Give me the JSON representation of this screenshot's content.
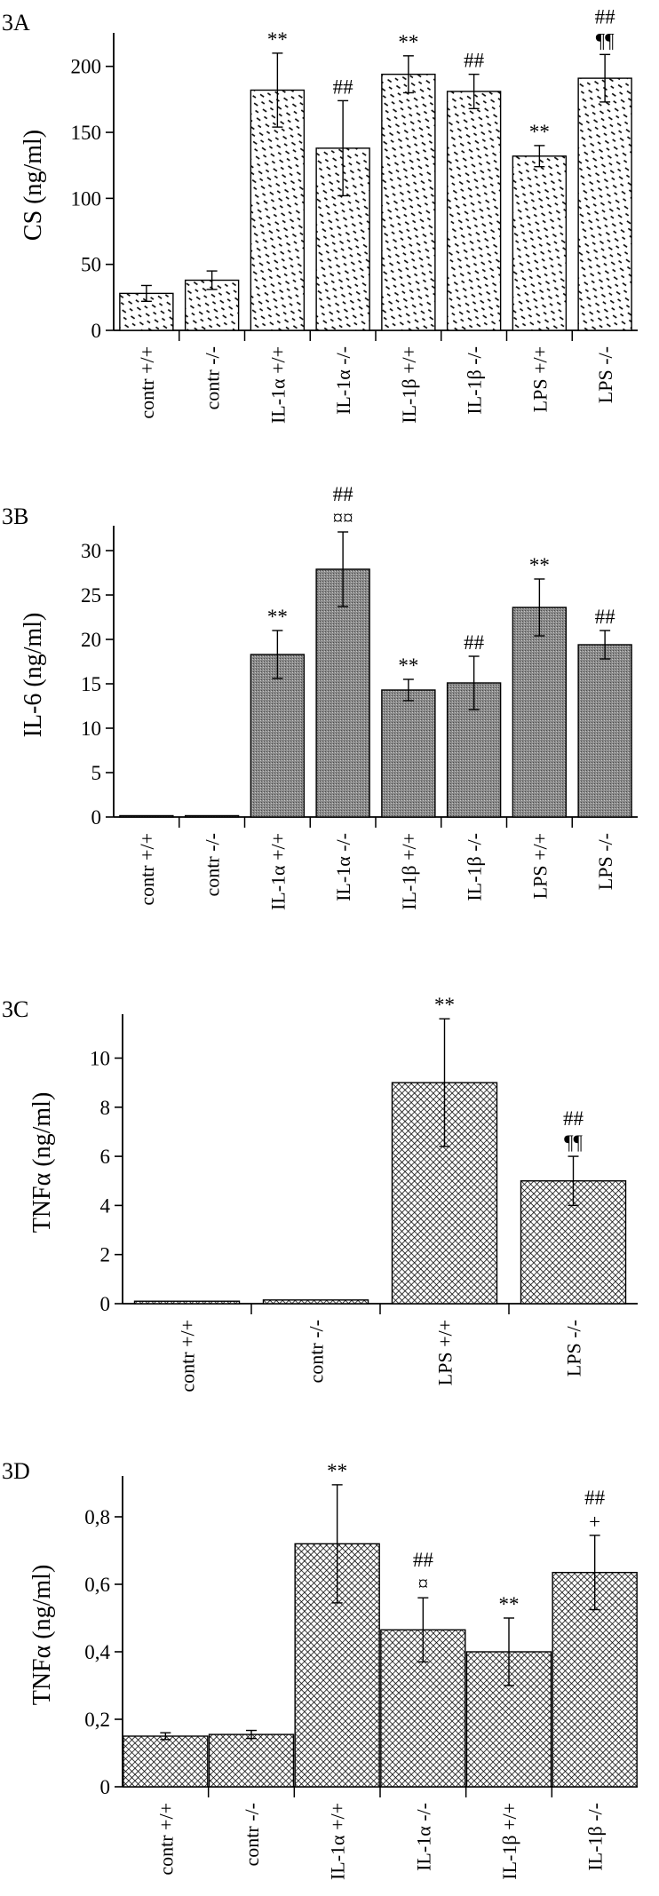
{
  "chart_data": [
    {
      "panel": "3A",
      "type": "bar",
      "ylabel": "CS (ng/ml)",
      "ylim": [
        0,
        220
      ],
      "yticks": [
        0,
        50,
        100,
        150,
        200
      ],
      "fill": "dashed-diagonal",
      "categories": [
        "contr +/+",
        "contr -/-",
        "IL-1α +/+",
        "IL-1α -/-",
        "IL-1β +/+",
        "IL-1β -/-",
        "LPS +/+",
        "LPS -/-"
      ],
      "values": [
        28,
        38,
        182,
        138,
        194,
        181,
        132,
        191
      ],
      "errors": [
        6,
        7,
        28,
        36,
        14,
        13,
        8,
        18
      ],
      "annotations": [
        [],
        [],
        [
          "**"
        ],
        [
          "##"
        ],
        [
          "**"
        ],
        [
          "##"
        ],
        [
          "**"
        ],
        [
          "##",
          "¶¶"
        ]
      ]
    },
    {
      "panel": "3B",
      "type": "bar",
      "ylabel": "IL-6 (ng/ml)",
      "ylim": [
        0,
        32
      ],
      "yticks": [
        0,
        5,
        10,
        15,
        20,
        25,
        30
      ],
      "fill": "gray-stipple",
      "categories": [
        "contr +/+",
        "contr -/-",
        "IL-1α +/+",
        "IL-1α -/-",
        "IL-1β +/+",
        "IL-1β -/-",
        "LPS +/+",
        "LPS -/-"
      ],
      "values": [
        0.15,
        0.1,
        18.3,
        27.9,
        14.3,
        15.1,
        23.6,
        19.4
      ],
      "errors": [
        0,
        0,
        2.7,
        4.2,
        1.2,
        3.0,
        3.2,
        1.6
      ],
      "annotations": [
        [],
        [],
        [
          "**"
        ],
        [
          "##",
          "¤¤"
        ],
        [
          "**"
        ],
        [
          "##"
        ],
        [
          "**"
        ],
        [
          "##"
        ]
      ]
    },
    {
      "panel": "3C",
      "type": "bar",
      "ylabel": "TNFα (ng/ml)",
      "ylim": [
        0,
        11.5
      ],
      "yticks": [
        0,
        2,
        4,
        6,
        8,
        10
      ],
      "fill": "crosshatch",
      "categories": [
        "contr +/+",
        "contr -/-",
        "LPS +/+",
        "LPS -/-"
      ],
      "values": [
        0.1,
        0.15,
        9.0,
        5.0
      ],
      "errors": [
        0,
        0,
        2.6,
        1.0
      ],
      "annotations": [
        [],
        [],
        [
          "**"
        ],
        [
          "##",
          "¶¶"
        ]
      ]
    },
    {
      "panel": "3D",
      "type": "bar",
      "ylabel": "TNFα (ng/ml)",
      "ylim": [
        0,
        0.9
      ],
      "yticks": [
        0,
        0.2,
        0.4,
        0.6,
        0.8
      ],
      "ytick_labels": [
        "0",
        "0,2",
        "0,4",
        "0,6",
        "0,8"
      ],
      "fill": "crosshatch",
      "categories": [
        "contr +/+",
        "contr -/-",
        "IL-1α +/+",
        "IL-1α -/-",
        "IL-1β +/+",
        "IL-1β -/-"
      ],
      "values": [
        0.15,
        0.155,
        0.72,
        0.465,
        0.4,
        0.635
      ],
      "errors": [
        0.01,
        0.012,
        0.175,
        0.095,
        0.1,
        0.11
      ],
      "annotations": [
        [],
        [],
        [
          "**"
        ],
        [
          "##",
          "¤"
        ],
        [
          "**"
        ],
        [
          "##",
          "+"
        ]
      ]
    }
  ]
}
